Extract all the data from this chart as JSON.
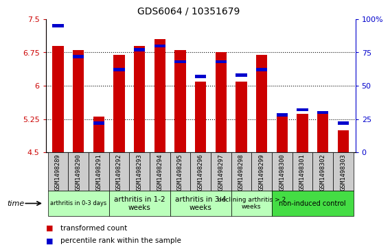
{
  "title": "GDS6064 / 10351679",
  "samples": [
    "GSM1498289",
    "GSM1498290",
    "GSM1498291",
    "GSM1498292",
    "GSM1498293",
    "GSM1498294",
    "GSM1498295",
    "GSM1498296",
    "GSM1498297",
    "GSM1498298",
    "GSM1498299",
    "GSM1498300",
    "GSM1498301",
    "GSM1498302",
    "GSM1498303"
  ],
  "transformed_count": [
    6.9,
    6.8,
    5.3,
    6.7,
    6.9,
    7.05,
    6.8,
    6.1,
    6.75,
    6.1,
    6.7,
    5.37,
    5.37,
    5.4,
    5.0
  ],
  "percentile_rank": [
    95,
    72,
    22,
    62,
    77,
    80,
    68,
    57,
    68,
    58,
    62,
    28,
    32,
    30,
    22
  ],
  "ylim_left": [
    4.5,
    7.5
  ],
  "ylim_right": [
    0,
    100
  ],
  "yticks_left": [
    4.5,
    5.25,
    6.0,
    6.75,
    7.5
  ],
  "yticks_right": [
    0,
    25,
    50,
    75,
    100
  ],
  "ytick_labels_left": [
    "4.5",
    "5.25",
    "6",
    "6.75",
    "7.5"
  ],
  "ytick_labels_right": [
    "0",
    "25",
    "50",
    "75",
    "100%"
  ],
  "bar_color_red": "#cc0000",
  "bar_color_blue": "#0000cc",
  "bar_width": 0.55,
  "bar_bottom": 4.5,
  "groups": [
    {
      "label": "arthritis in 0-3 days",
      "start": 0,
      "end": 3,
      "color": "#bbffbb",
      "fontsize": 6.0
    },
    {
      "label": "arthritis in 1-2\nweeks",
      "start": 3,
      "end": 6,
      "color": "#bbffbb",
      "fontsize": 7.5
    },
    {
      "label": "arthritis in 3-4\nweeks",
      "start": 6,
      "end": 9,
      "color": "#bbffbb",
      "fontsize": 7.5
    },
    {
      "label": "declining arthritis > 2\nweeks",
      "start": 9,
      "end": 11,
      "color": "#bbffbb",
      "fontsize": 6.5
    },
    {
      "label": "non-induced control",
      "start": 11,
      "end": 15,
      "color": "#44dd44",
      "fontsize": 7.0
    }
  ],
  "xlabel": "time",
  "legend_red": "transformed count",
  "legend_blue": "percentile rank within the sample",
  "grid_yticks": [
    5.25,
    6.0,
    6.75
  ],
  "bg_color_plot": "#ffffff",
  "gray_cell_color": "#cccccc",
  "title_fontsize": 10,
  "tick_label_fontsize": 6.5,
  "left_color": "#cc0000",
  "right_color": "#0000cc"
}
